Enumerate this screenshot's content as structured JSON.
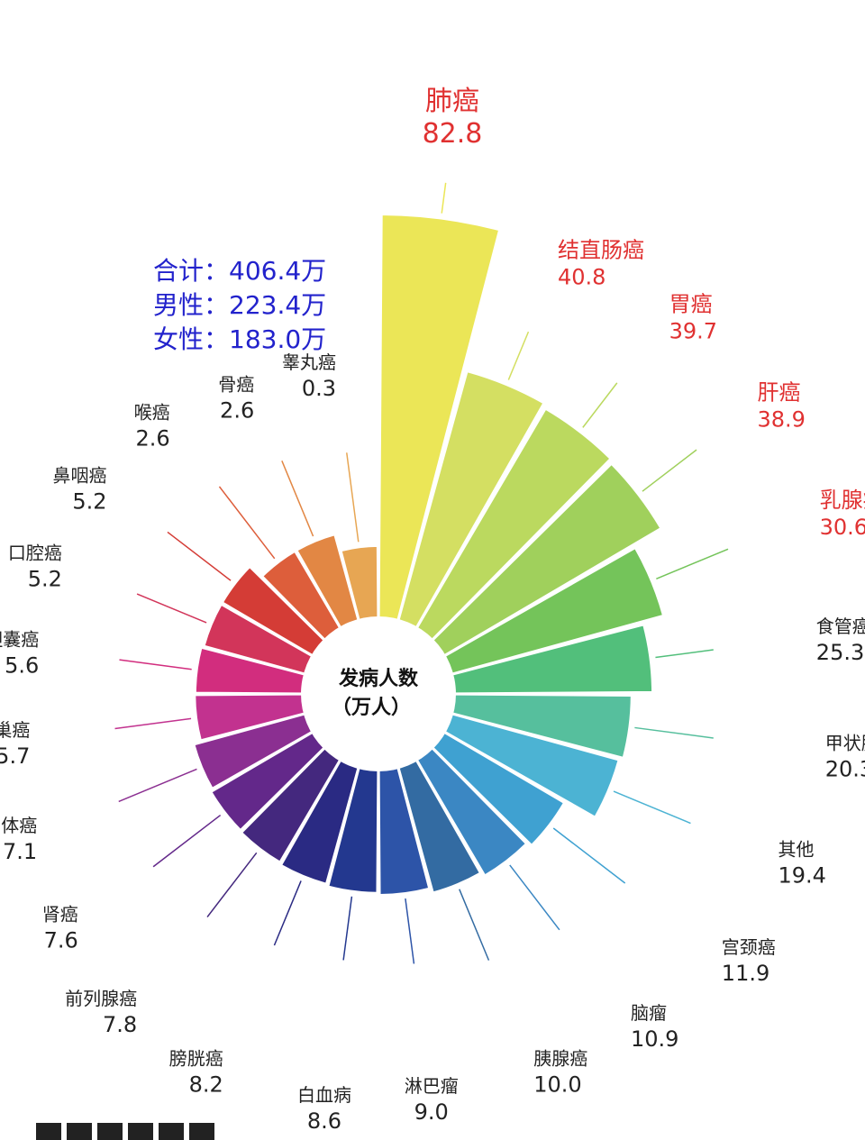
{
  "summary": {
    "total": "合计：406.4万",
    "male": "男性：223.4万",
    "female": "女性：183.0万"
  },
  "chart_data": {
    "type": "polar-bar",
    "title": "",
    "center_label_line1": "发病人数",
    "center_label_line2": "（万人）",
    "unit": "万人",
    "categories": [
      "肺癌",
      "结直肠癌",
      "胃癌",
      "肝癌",
      "乳腺癌",
      "食管癌",
      "甲状腺癌",
      "其他",
      "宫颈癌",
      "脑瘤",
      "胰腺癌",
      "淋巴瘤",
      "白血病",
      "膀胱癌",
      "前列腺癌",
      "肾癌",
      "子宫体癌",
      "卵巢癌",
      "胆囊癌",
      "口腔癌",
      "鼻咽癌",
      "喉癌",
      "骨癌",
      "睾丸癌"
    ],
    "values": [
      82.8,
      40.8,
      39.7,
      38.9,
      30.6,
      25.3,
      20.3,
      19.4,
      11.9,
      10.9,
      10.0,
      9.0,
      8.6,
      8.2,
      7.8,
      7.6,
      7.1,
      5.7,
      5.6,
      5.2,
      5.2,
      2.6,
      2.6,
      0.3
    ],
    "value_labels": [
      "82.8",
      "40.8",
      "39.7",
      "38.9",
      "30.6",
      "25.3",
      "20.3",
      "19.4",
      "11.9",
      "10.9",
      "10.0",
      "9.0",
      "8.6",
      "8.2",
      "7.8",
      "7.6",
      "7.1",
      "5.7",
      "5.6",
      "5.2",
      "5.2",
      "2.6",
      "2.6",
      "0.3"
    ],
    "colors": [
      "#ebe657",
      "#d4df62",
      "#bbd95f",
      "#a0d05c",
      "#74c45a",
      "#52bf7b",
      "#56bf9d",
      "#4cb3d3",
      "#3fa1d1",
      "#3b87c3",
      "#336ba2",
      "#2d54a8",
      "#23388f",
      "#2a2a83",
      "#44287e",
      "#63288a",
      "#8b2f91",
      "#c2328f",
      "#d22d7e",
      "#d2355a",
      "#d43c36",
      "#dd5e3b",
      "#e28744",
      "#e7a653",
      "#d5914a"
    ],
    "highlight_color": "#e03131",
    "label_color": "#222222",
    "leader_color_source": "series"
  }
}
